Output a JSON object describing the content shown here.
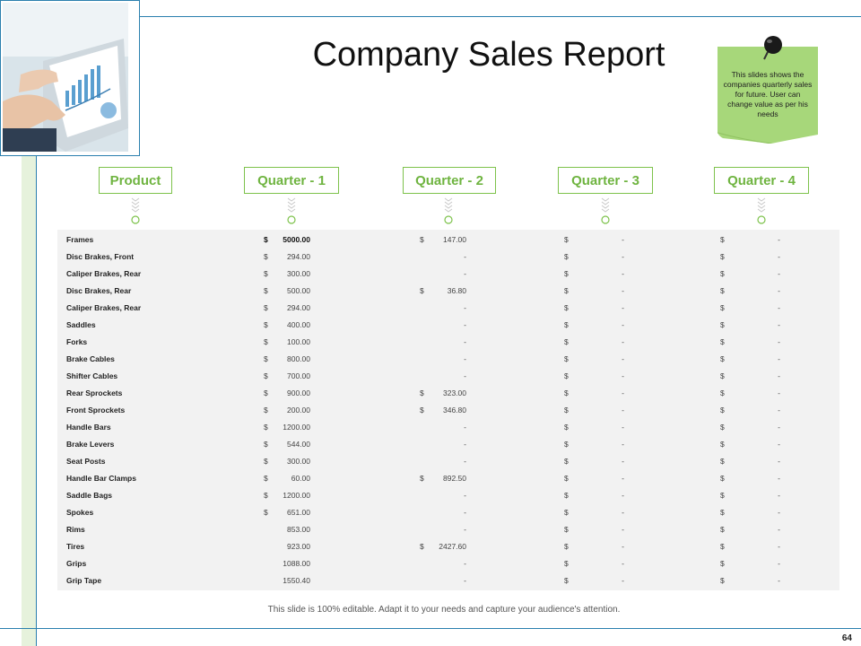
{
  "title": "Company Sales Report",
  "note": {
    "text": "This slides shows the companies quarterly sales for future. User can change value as per his needs"
  },
  "headers": [
    "Product",
    "Quarter - 1",
    "Quarter - 2",
    "Quarter - 3",
    "Quarter - 4"
  ],
  "currency_symbol": "$",
  "rows": [
    {
      "product": "Frames",
      "q1_cur": "$",
      "q1": "5000.00",
      "q2_cur": "$",
      "q2": "147.00",
      "q3_cur": "$",
      "q3": "-",
      "q4_cur": "$",
      "q4": "-"
    },
    {
      "product": "Disc Brakes, Front",
      "q1_cur": "$",
      "q1": "294.00",
      "q2_cur": "",
      "q2": "-",
      "q3_cur": "$",
      "q3": "-",
      "q4_cur": "$",
      "q4": "-"
    },
    {
      "product": "Caliper Brakes, Rear",
      "q1_cur": "$",
      "q1": "300.00",
      "q2_cur": "",
      "q2": "-",
      "q3_cur": "$",
      "q3": "-",
      "q4_cur": "$",
      "q4": "-"
    },
    {
      "product": "Disc Brakes, Rear",
      "q1_cur": "$",
      "q1": "500.00",
      "q2_cur": "$",
      "q2": "36.80",
      "q3_cur": "$",
      "q3": "-",
      "q4_cur": "$",
      "q4": "-"
    },
    {
      "product": "Caliper Brakes, Rear",
      "q1_cur": "$",
      "q1": "294.00",
      "q2_cur": "",
      "q2": "-",
      "q3_cur": "$",
      "q3": "-",
      "q4_cur": "$",
      "q4": "-"
    },
    {
      "product": "Saddles",
      "q1_cur": "$",
      "q1": "400.00",
      "q2_cur": "",
      "q2": "-",
      "q3_cur": "$",
      "q3": "-",
      "q4_cur": "$",
      "q4": "-"
    },
    {
      "product": "Forks",
      "q1_cur": "$",
      "q1": "100.00",
      "q2_cur": "",
      "q2": "-",
      "q3_cur": "$",
      "q3": "-",
      "q4_cur": "$",
      "q4": "-"
    },
    {
      "product": "Brake Cables",
      "q1_cur": "$",
      "q1": "800.00",
      "q2_cur": "",
      "q2": "-",
      "q3_cur": "$",
      "q3": "-",
      "q4_cur": "$",
      "q4": "-"
    },
    {
      "product": "Shifter Cables",
      "q1_cur": "$",
      "q1": "700.00",
      "q2_cur": "",
      "q2": "-",
      "q3_cur": "$",
      "q3": "-",
      "q4_cur": "$",
      "q4": "-"
    },
    {
      "product": "Rear Sprockets",
      "q1_cur": "$",
      "q1": "900.00",
      "q2_cur": "$",
      "q2": "323.00",
      "q3_cur": "$",
      "q3": "-",
      "q4_cur": "$",
      "q4": "-"
    },
    {
      "product": "Front Sprockets",
      "q1_cur": "$",
      "q1": "200.00",
      "q2_cur": "$",
      "q2": "346.80",
      "q3_cur": "$",
      "q3": "-",
      "q4_cur": "$",
      "q4": "-"
    },
    {
      "product": "Handle Bars",
      "q1_cur": "$",
      "q1": "1200.00",
      "q2_cur": "",
      "q2": "-",
      "q3_cur": "$",
      "q3": "-",
      "q4_cur": "$",
      "q4": "-"
    },
    {
      "product": "Brake Levers",
      "q1_cur": "$",
      "q1": "544.00",
      "q2_cur": "",
      "q2": "-",
      "q3_cur": "$",
      "q3": "-",
      "q4_cur": "$",
      "q4": "-"
    },
    {
      "product": "Seat Posts",
      "q1_cur": "$",
      "q1": "300.00",
      "q2_cur": "",
      "q2": "-",
      "q3_cur": "$",
      "q3": "-",
      "q4_cur": "$",
      "q4": "-"
    },
    {
      "product": "Handle Bar Clamps",
      "q1_cur": "$",
      "q1": "60.00",
      "q2_cur": "$",
      "q2": "892.50",
      "q3_cur": "$",
      "q3": "-",
      "q4_cur": "$",
      "q4": "-"
    },
    {
      "product": "Saddle Bags",
      "q1_cur": "$",
      "q1": "1200.00",
      "q2_cur": "",
      "q2": "-",
      "q3_cur": "$",
      "q3": "-",
      "q4_cur": "$",
      "q4": "-"
    },
    {
      "product": "Spokes",
      "q1_cur": "$",
      "q1": "651.00",
      "q2_cur": "",
      "q2": "-",
      "q3_cur": "$",
      "q3": "-",
      "q4_cur": "$",
      "q4": "-"
    },
    {
      "product": "Rims",
      "q1_cur": "",
      "q1": "853.00",
      "q2_cur": "",
      "q2": "-",
      "q3_cur": "$",
      "q3": "-",
      "q4_cur": "$",
      "q4": "-"
    },
    {
      "product": "Tires",
      "q1_cur": "",
      "q1": "923.00",
      "q2_cur": "$",
      "q2": "2427.60",
      "q3_cur": "$",
      "q3": "-",
      "q4_cur": "$",
      "q4": "-"
    },
    {
      "product": "Grips",
      "q1_cur": "",
      "q1": "1088.00",
      "q2_cur": "",
      "q2": "-",
      "q3_cur": "$",
      "q3": "-",
      "q4_cur": "$",
      "q4": "-"
    },
    {
      "product": "Grip Tape",
      "q1_cur": "",
      "q1": "1550.40",
      "q2_cur": "",
      "q2": "-",
      "q3_cur": "$",
      "q3": "-",
      "q4_cur": "$",
      "q4": "-"
    }
  ],
  "footer": "This slide is 100% editable. Adapt it to your needs and capture your audience's attention.",
  "page_number": "64",
  "colors": {
    "accent_green": "#7dc24b",
    "frame_blue": "#2a7fae",
    "note_green": "#a7d77a",
    "table_bg": "#f2f2f2"
  },
  "icons": {
    "photo": "tablet-chart-photo",
    "pin": "push-pin-icon",
    "connector": "chevron-connector-icon"
  }
}
